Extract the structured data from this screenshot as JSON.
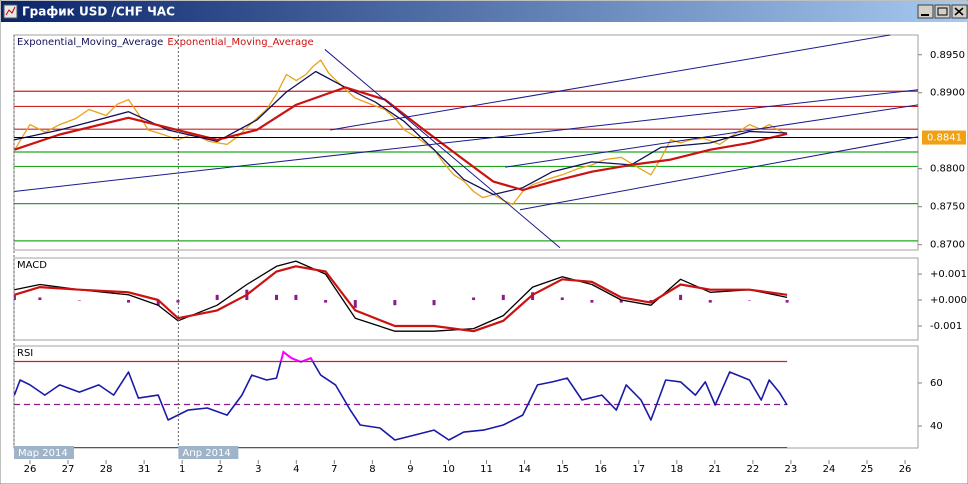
{
  "window": {
    "title": "График USD /CHF ЧАС"
  },
  "chart_data": [
    {
      "type": "line",
      "xlim": [
        -0.42,
        23.34
      ],
      "ylim": [
        0.8693,
        0.8976
      ],
      "yticks": [
        {
          "value": 0.87,
          "label": "0.8700"
        },
        {
          "value": 0.875,
          "label": "0.8750"
        },
        {
          "value": 0.88,
          "label": "0.8800"
        },
        {
          "value": 0.89,
          "label": "0.8900"
        },
        {
          "value": 0.895,
          "label": "0.8950"
        }
      ],
      "last_price": 0.8841,
      "last_price_color": "#f0a010",
      "levels": [
        {
          "value": 0.8902,
          "color": "#cc2222"
        },
        {
          "value": 0.8882,
          "color": "#cc2222"
        },
        {
          "value": 0.8852,
          "color": "#cc2222"
        },
        {
          "value": 0.8822,
          "color": "#22aa22"
        },
        {
          "value": 0.8803,
          "color": "#22aa22"
        },
        {
          "value": 0.8754,
          "color": "#22aa22"
        },
        {
          "value": 0.8705,
          "color": "#22aa22"
        }
      ],
      "trendlines": [
        {
          "x": [
            -0.42,
            23.34
          ],
          "values": [
            0.877,
            0.8904
          ],
          "color": "#1a1a8c"
        },
        {
          "x": [
            7.89,
            22.61
          ],
          "values": [
            0.8851,
            0.8976
          ],
          "color": "#1a1a8c"
        },
        {
          "x": [
            12.49,
            23.34
          ],
          "values": [
            0.8802,
            0.8884
          ],
          "color": "#1a1a8c"
        },
        {
          "x": [
            12.88,
            23.34
          ],
          "values": [
            0.8746,
            0.8842
          ],
          "color": "#1a1a8c"
        },
        {
          "x": [
            7.75,
            13.93
          ],
          "values": [
            0.8957,
            0.8696
          ],
          "color": "#1a1a8c"
        }
      ],
      "series": [
        {
          "color": "#e8a317",
          "x": [
            -0.4,
            -0.2,
            0,
            0.4,
            0.78,
            1.2,
            1.55,
            2.0,
            2.3,
            2.59,
            2.85,
            3.11,
            3.5,
            3.89,
            4.3,
            4.7,
            5.18,
            5.45,
            5.7,
            5.95,
            6.22,
            6.5,
            6.74,
            7.0,
            7.25,
            7.45,
            7.64,
            7.85,
            8.03,
            8.3,
            8.55,
            8.9,
            9.33,
            9.6,
            9.84,
            10.2,
            10.62,
            10.9,
            11.14,
            11.4,
            11.66,
            11.9,
            12.18,
            12.45,
            12.69,
            12.95,
            13.21,
            13.6,
            13.99,
            14.4,
            14.77,
            15.1,
            15.54,
            15.9,
            16.32,
            16.6,
            16.84,
            17.1,
            17.36,
            17.7,
            18.13,
            18.5,
            18.91,
            19.2,
            19.43,
            19.7,
            19.9
          ],
          "values": [
            0.8825,
            0.8842,
            0.8858,
            0.8848,
            0.8858,
            0.8866,
            0.8878,
            0.887,
            0.8885,
            0.8891,
            0.8872,
            0.8851,
            0.8845,
            0.8838,
            0.8846,
            0.8836,
            0.8832,
            0.8842,
            0.8854,
            0.8866,
            0.8878,
            0.89,
            0.8924,
            0.8916,
            0.8924,
            0.8935,
            0.8943,
            0.8926,
            0.8917,
            0.8904,
            0.8893,
            0.8886,
            0.8878,
            0.8866,
            0.8851,
            0.884,
            0.8825,
            0.8806,
            0.8792,
            0.8784,
            0.877,
            0.8762,
            0.8766,
            0.8758,
            0.8753,
            0.877,
            0.8779,
            0.8786,
            0.8792,
            0.88,
            0.8805,
            0.8812,
            0.8815,
            0.8804,
            0.8792,
            0.8815,
            0.8838,
            0.8834,
            0.8838,
            0.884,
            0.8832,
            0.8845,
            0.8858,
            0.8852,
            0.8858,
            0.885,
            0.8845
          ]
        },
        {
          "name": "Exponential_Moving_Average",
          "color": "#10105a",
          "x": [
            -0.41,
            0.78,
            2.59,
            3.63,
            4.92,
            5.96,
            6.74,
            7.51,
            8.29,
            9.07,
            9.84,
            10.62,
            11.4,
            12.18,
            12.95,
            13.73,
            14.77,
            15.8,
            16.58,
            17.88,
            18.91,
            19.9
          ],
          "values": [
            0.8838,
            0.8851,
            0.8875,
            0.8851,
            0.8836,
            0.8864,
            0.8901,
            0.8928,
            0.8907,
            0.8888,
            0.8862,
            0.8825,
            0.8786,
            0.8766,
            0.8775,
            0.8796,
            0.8809,
            0.8805,
            0.8828,
            0.8834,
            0.8849,
            0.8847
          ]
        },
        {
          "name": "Exponential_Moving_Average",
          "color": "#cc1111",
          "width": 2.2,
          "x": [
            -0.41,
            0.78,
            2.59,
            3.63,
            4.92,
            5.96,
            6.99,
            8.29,
            9.33,
            10.36,
            11.4,
            12.18,
            12.95,
            13.73,
            14.77,
            15.8,
            16.84,
            17.88,
            18.91,
            19.9
          ],
          "values": [
            0.8825,
            0.8845,
            0.8867,
            0.8854,
            0.8838,
            0.8851,
            0.8884,
            0.8907,
            0.8891,
            0.8851,
            0.8812,
            0.8783,
            0.8772,
            0.8783,
            0.8796,
            0.8805,
            0.8812,
            0.8825,
            0.8834,
            0.8846
          ]
        }
      ]
    },
    {
      "type": "line",
      "title": "MACD",
      "xlim": [
        -0.42,
        23.34
      ],
      "ylim": [
        -0.00154,
        0.00162
      ],
      "yticks": [
        {
          "value": 0.001,
          "label": "+0.001"
        },
        {
          "value": 0,
          "label": "+0.000"
        },
        {
          "value": -0.001,
          "label": "-0.001"
        }
      ],
      "series": [
        {
          "type": "bar",
          "color": "#8b1a8b",
          "x": [
            -0.41,
            0.26,
            1.3,
            2.59,
            3.37,
            3.89,
            4.92,
            5.7,
            6.48,
            6.99,
            7.77,
            8.55,
            9.59,
            10.62,
            11.66,
            12.44,
            13.21,
            13.99,
            14.77,
            15.54,
            16.32,
            17.1,
            17.88,
            18.91,
            19.9
          ],
          "values": [
            0.0002,
            0.0001,
            0,
            -0.0001,
            -0.0002,
            -0.0001,
            0.0002,
            0.0004,
            0.0002,
            0.0002,
            -0.0001,
            -0.0003,
            -0.0002,
            -0.0002,
            0.0001,
            0.0002,
            0.0003,
            0.0001,
            -0.0001,
            -0.0001,
            -0.0001,
            0.0002,
            -0.0001,
            0,
            -0.0001
          ]
        },
        {
          "color": "#000000",
          "x": [
            -0.41,
            0.26,
            1.3,
            2.59,
            3.37,
            3.89,
            4.92,
            5.7,
            6.48,
            6.99,
            7.77,
            8.55,
            9.59,
            10.62,
            11.66,
            12.44,
            13.21,
            13.99,
            14.77,
            15.54,
            16.32,
            17.1,
            17.88,
            18.91,
            19.9
          ],
          "values": [
            0.0004,
            0.0006,
            0.0004,
            0.0002,
            -0.0002,
            -0.0008,
            -0.0002,
            0.0006,
            0.0013,
            0.0015,
            0.001,
            -0.0007,
            -0.0012,
            -0.0012,
            -0.0011,
            -0.0006,
            0.0005,
            0.0009,
            0.0006,
            0,
            -0.0002,
            0.0008,
            0.0003,
            0.0004,
            0.0001
          ]
        },
        {
          "color": "#cc1111",
          "width": 2.2,
          "x": [
            -0.41,
            0.26,
            1.3,
            2.59,
            3.37,
            3.89,
            4.92,
            5.7,
            6.48,
            6.99,
            7.77,
            8.55,
            9.59,
            10.62,
            11.66,
            12.44,
            13.21,
            13.99,
            14.77,
            15.54,
            16.32,
            17.1,
            17.88,
            18.91,
            19.9
          ],
          "values": [
            0.0002,
            0.0005,
            0.0004,
            0.0003,
            0,
            -0.0007,
            -0.0004,
            0.0002,
            0.0011,
            0.0013,
            0.0011,
            -0.0004,
            -0.001,
            -0.001,
            -0.0012,
            -0.0008,
            0.0002,
            0.0008,
            0.0007,
            0.0001,
            -0.0001,
            0.0006,
            0.0004,
            0.0004,
            0.0002
          ]
        }
      ]
    },
    {
      "type": "line",
      "title": "RSI",
      "xlim": [
        -0.42,
        23.34
      ],
      "ylim": [
        29.8,
        77.2
      ],
      "yticks": [
        60,
        40
      ],
      "levels": [
        {
          "value": 70,
          "color": "#cc2222"
        },
        {
          "value": 50,
          "color": "#8b1a8b",
          "dashed": true
        },
        {
          "value": 30,
          "color": "#118811"
        }
      ],
      "overbought_color": "#ff00ff",
      "series": [
        {
          "color": "#1a1aa8",
          "width": 1.6,
          "x": [
            -0.41,
            -0.26,
            0,
            0.39,
            0.78,
            1.3,
            1.81,
            2.2,
            2.59,
            2.85,
            3.37,
            3.63,
            4.15,
            4.66,
            5.18,
            5.57,
            5.83,
            6.22,
            6.48,
            6.66,
            6.87,
            7.12,
            7.38,
            7.64,
            8.03,
            8.42,
            8.68,
            9.2,
            9.59,
            10.1,
            10.62,
            11.01,
            11.4,
            11.92,
            12.44,
            12.95,
            13.34,
            13.73,
            14.12,
            14.51,
            15.03,
            15.41,
            15.67,
            16.06,
            16.32,
            16.71,
            17.1,
            17.49,
            17.75,
            18.01,
            18.39,
            18.91,
            19.22,
            19.43,
            19.69,
            19.9
          ],
          "values": [
            54.4,
            61.4,
            59.1,
            54.4,
            59.1,
            55.8,
            59.1,
            54.4,
            65.1,
            53,
            54.4,
            42.8,
            47.4,
            48.4,
            45.1,
            54.4,
            63.7,
            61.4,
            62.3,
            74.4,
            71.6,
            69.8,
            71.6,
            63.7,
            59.1,
            47.4,
            40.5,
            39.1,
            33.5,
            35.8,
            38.1,
            33.5,
            37.2,
            38.1,
            40.5,
            45.1,
            59.1,
            60.5,
            62.3,
            52.1,
            54.4,
            47.4,
            59.1,
            52.1,
            42.8,
            61.4,
            60.5,
            54.4,
            60.5,
            49.8,
            65.1,
            61.4,
            52.1,
            61.4,
            55.8,
            49.8
          ]
        }
      ],
      "xticks": [
        {
          "value": 0,
          "label": "26"
        },
        {
          "value": 1,
          "label": "27"
        },
        {
          "value": 2,
          "label": "28"
        },
        {
          "value": 3,
          "label": "31"
        },
        {
          "value": 4,
          "label": "1"
        },
        {
          "value": 5,
          "label": "2"
        },
        {
          "value": 6,
          "label": "3"
        },
        {
          "value": 7,
          "label": "4"
        },
        {
          "value": 8,
          "label": "7"
        },
        {
          "value": 9,
          "label": "8"
        },
        {
          "value": 10,
          "label": "9"
        },
        {
          "value": 11,
          "label": "10"
        },
        {
          "value": 12,
          "label": "11"
        },
        {
          "value": 13,
          "label": "14"
        },
        {
          "value": 14,
          "label": "15"
        },
        {
          "value": 15,
          "label": "16"
        },
        {
          "value": 16,
          "label": "17"
        },
        {
          "value": 17,
          "label": "18"
        },
        {
          "value": 18,
          "label": "21"
        },
        {
          "value": 19,
          "label": "22"
        },
        {
          "value": 20,
          "label": "23"
        },
        {
          "value": 21,
          "label": "24"
        },
        {
          "value": 22,
          "label": "25"
        },
        {
          "value": 23,
          "label": "26"
        }
      ],
      "periods": [
        {
          "value": -0.42,
          "label": "Мар 2014"
        },
        {
          "value": 3.9,
          "label": "Апр 2014"
        }
      ]
    }
  ]
}
